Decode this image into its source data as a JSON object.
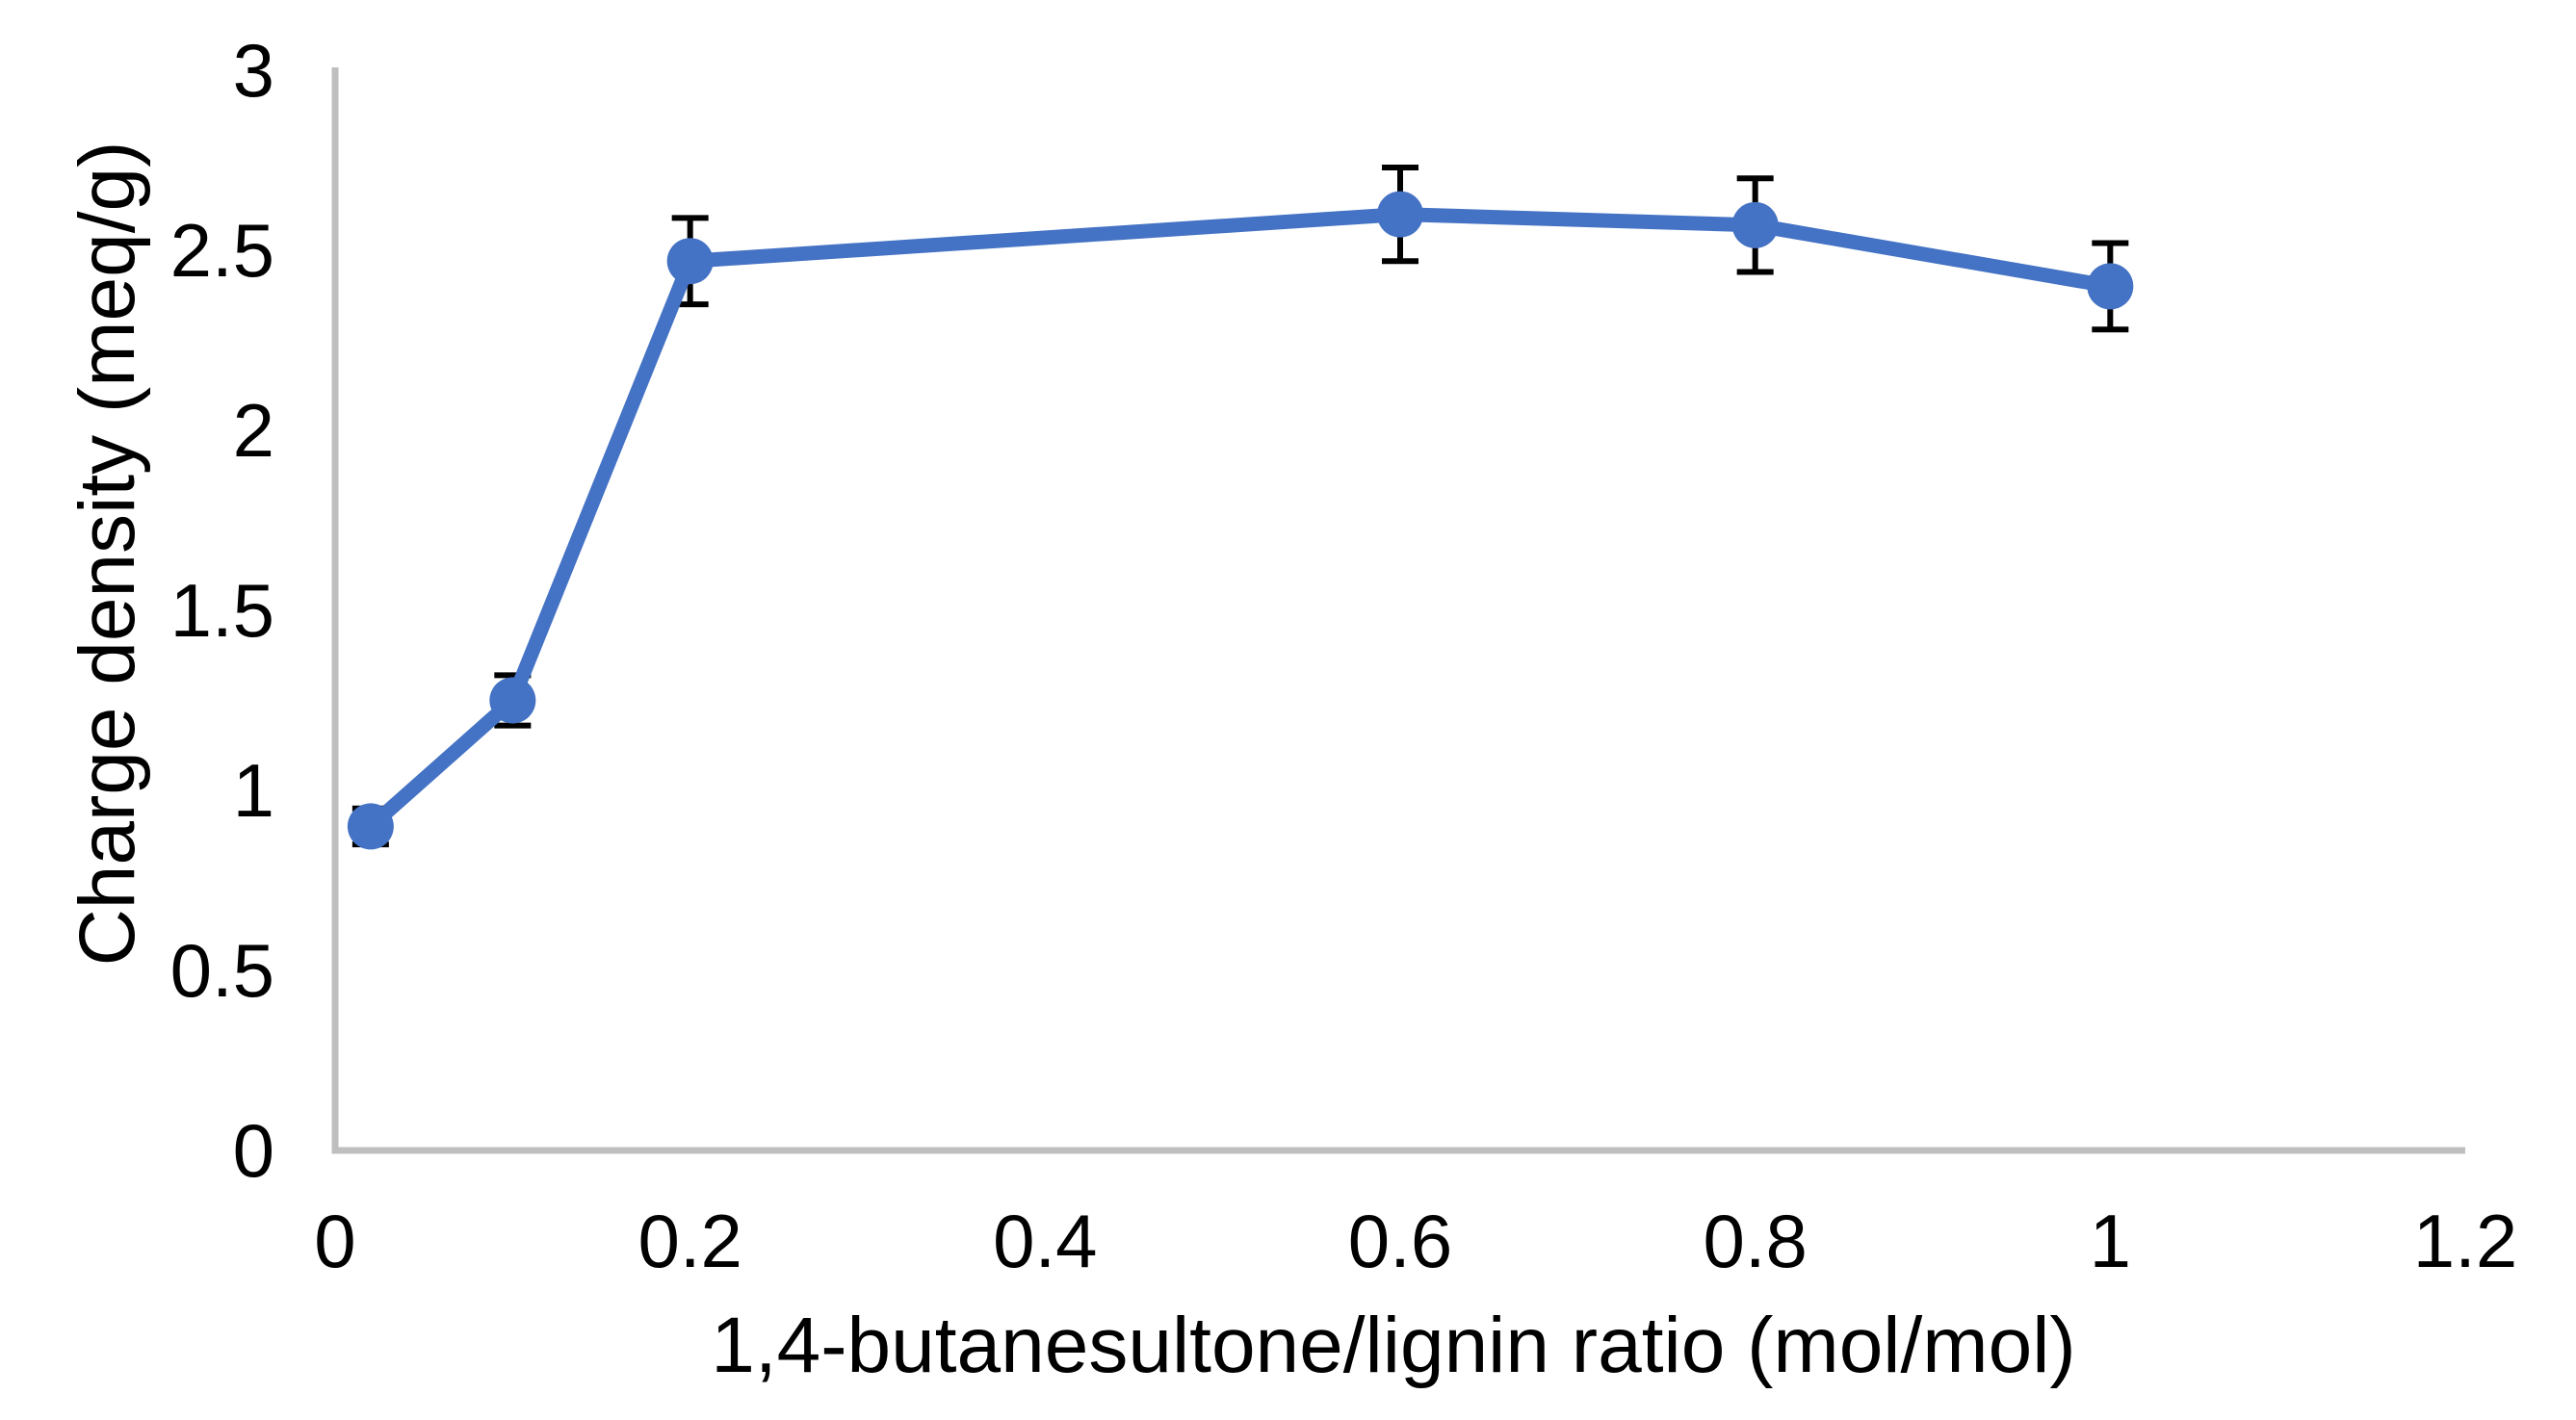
{
  "chart_data": {
    "type": "line",
    "xlabel": "1,4-butanesultone/lignin ratio (mol/mol)",
    "ylabel": "Charge density (meq/g)",
    "x": [
      0.02,
      0.1,
      0.2,
      0.6,
      0.8,
      1
    ],
    "y": [
      0.9,
      1.25,
      2.47,
      2.6,
      2.57,
      2.4
    ],
    "y_err": [
      0.05,
      0.07,
      0.12,
      0.13,
      0.13,
      0.12
    ],
    "xlim": [
      0,
      1.2
    ],
    "ylim": [
      0,
      3
    ],
    "x_tick_values": [
      0,
      0.2,
      0.4,
      0.6,
      0.8,
      1,
      1.2
    ],
    "x_tick_labels": [
      "0",
      "0.2",
      "0.4",
      "0.6",
      "0.8",
      "1",
      "1.2"
    ],
    "y_tick_values": [
      0,
      0.5,
      1,
      1.5,
      2,
      2.5,
      3
    ],
    "y_tick_labels": [
      "0",
      "0.5",
      "1",
      "1.5",
      "2",
      "2.5",
      "3"
    ],
    "grid": false,
    "legend": false,
    "marker": "circle",
    "colors": {
      "series": "#4472C4",
      "error_bar": "#000000",
      "axis_line": "#BFBFBF",
      "text": "#000000",
      "background": "#FFFFFF"
    }
  }
}
